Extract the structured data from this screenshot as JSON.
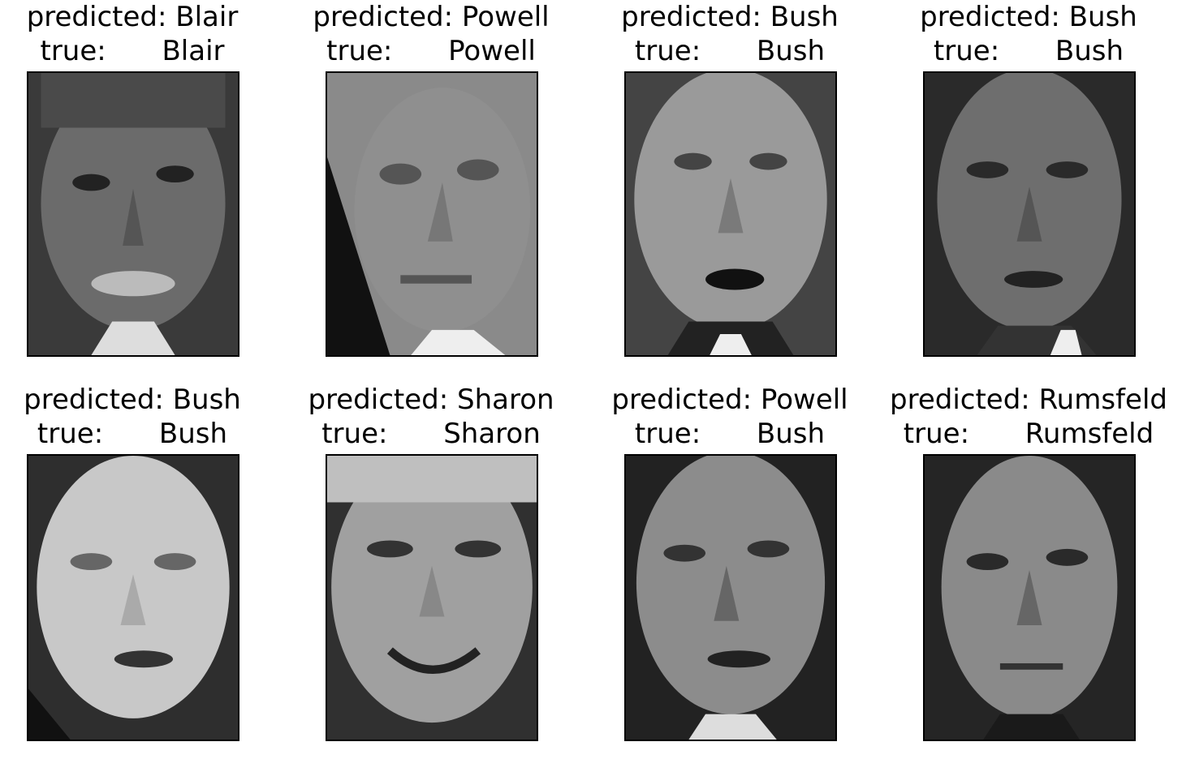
{
  "labels": {
    "predicted_prefix": "predicted:",
    "true_prefix": "true:"
  },
  "panels": [
    {
      "predicted": "Blair",
      "true": "Blair",
      "face_tone": "#6b6b6b",
      "bg_tone": "#3a3a3a"
    },
    {
      "predicted": "Powell",
      "true": "Powell",
      "face_tone": "#8a8a8a",
      "bg_tone": "#1e1e1e"
    },
    {
      "predicted": "Bush",
      "true": "Bush",
      "face_tone": "#9a9a9a",
      "bg_tone": "#444444"
    },
    {
      "predicted": "Bush",
      "true": "Bush",
      "face_tone": "#6e6e6e",
      "bg_tone": "#2a2a2a"
    },
    {
      "predicted": "Bush",
      "true": "Bush",
      "face_tone": "#c8c8c8",
      "bg_tone": "#2e2e2e"
    },
    {
      "predicted": "Sharon",
      "true": "Sharon",
      "face_tone": "#a0a0a0",
      "bg_tone": "#303030"
    },
    {
      "predicted": "Powell",
      "true": "Bush",
      "face_tone": "#8c8c8c",
      "bg_tone": "#222222"
    },
    {
      "predicted": "Rumsfeld",
      "true": "Rumsfeld",
      "face_tone": "#8a8a8a",
      "bg_tone": "#252525"
    }
  ]
}
